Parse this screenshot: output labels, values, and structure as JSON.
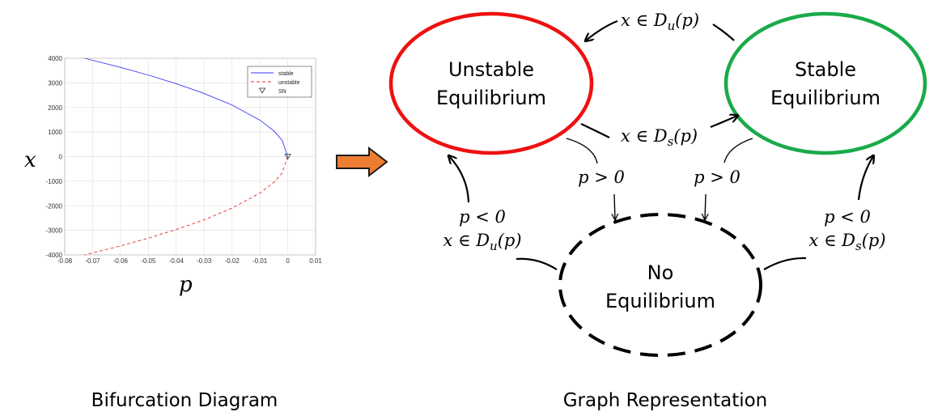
{
  "chart_data": {
    "type": "line",
    "title": "",
    "xlabel": "p",
    "ylabel": "x",
    "xlim": [
      -0.08,
      0.01
    ],
    "ylim": [
      -4000,
      4000
    ],
    "x_ticks": [
      "-0.08",
      "-0.07",
      "-0.06",
      "-0.05",
      "-0.04",
      "-0.03",
      "-0.02",
      "-0.01",
      "0",
      "0.01"
    ],
    "y_ticks": [
      "4000",
      "3000",
      "2000",
      "1000",
      "0",
      "-1000",
      "-2000",
      "-3000",
      "-4000"
    ],
    "grid": true,
    "legend_position": "top-right",
    "series": [
      {
        "name": "stable",
        "color": "#3a3af0",
        "style": "solid",
        "x": [
          -0.0729,
          -0.06,
          -0.05,
          -0.04,
          -0.03,
          -0.02,
          -0.01,
          -0.005,
          -0.002,
          0
        ],
        "y": [
          4000,
          3633,
          3317,
          2966,
          2569,
          2098,
          1483,
          1049,
          663,
          0
        ]
      },
      {
        "name": "unstable",
        "color": "#e83030",
        "style": "dashed",
        "x": [
          0,
          -0.002,
          -0.005,
          -0.01,
          -0.02,
          -0.03,
          -0.04,
          -0.05,
          -0.06,
          -0.0729
        ],
        "y": [
          0,
          -663,
          -1049,
          -1483,
          -2098,
          -2569,
          -2966,
          -3317,
          -3633,
          -4000
        ]
      }
    ],
    "markers": [
      {
        "name": "SN",
        "x": 0,
        "y": 0,
        "symbol": "triangle-down"
      }
    ]
  },
  "arrow_color": "#ed7d31",
  "graph": {
    "nodes": {
      "unstable": {
        "line1": "Unstable",
        "line2": "Equilibrium",
        "color": "#ee1111"
      },
      "stable": {
        "line1": "Stable",
        "line2": "Equilibrium",
        "color": "#1aaa4a"
      },
      "none": {
        "line1": "No",
        "line2": "Equilibrium",
        "color": "#000000"
      }
    },
    "edges": {
      "u_to_s_top": {
        "label": "x ∈ D_u(p)",
        "main": "x ∈ D",
        "sub": "u",
        "tail": "(p)"
      },
      "u_to_s_mid": {
        "label": "x ∈ D_s(p)",
        "main": "x ∈ D",
        "sub": "s",
        "tail": "(p)"
      },
      "u_to_none": {
        "label": "p > 0"
      },
      "s_to_none": {
        "label": "p > 0"
      },
      "none_to_u": {
        "label1": "p < 0",
        "label2": "x ∈ D_u(p)",
        "main": "x ∈ D",
        "sub": "u",
        "tail": "(p)"
      },
      "none_to_s": {
        "label1": "p < 0",
        "label2": "x ∈ D_s(p)",
        "main": "x ∈ D",
        "sub": "s",
        "tail": "(p)"
      }
    }
  },
  "captions": {
    "left": "Bifurcation Diagram",
    "right": "Graph Representation"
  }
}
